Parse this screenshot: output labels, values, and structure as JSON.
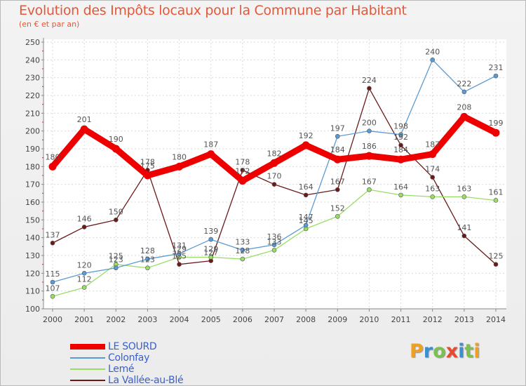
{
  "title": "Evolution des Impôts locaux pour la Commune par Habitant",
  "subtitle": "(en € et par an)",
  "brand": {
    "letters": [
      "P",
      "r",
      "o",
      "x",
      "i",
      "t",
      "i"
    ],
    "colors": [
      "#f0a020",
      "#3a8fd0",
      "#7cc050",
      "#e84a2f",
      "#3a8fd0",
      "#7cc050",
      "#f0a020"
    ]
  },
  "chart_data": {
    "type": "line",
    "title": "Evolution des Impôts locaux pour la Commune par Habitant",
    "subtitle": "(en € et par an)",
    "xlabel": "",
    "ylabel": "",
    "ylim": [
      100,
      250
    ],
    "yticks": [
      100,
      110,
      120,
      130,
      140,
      150,
      160,
      170,
      180,
      190,
      200,
      210,
      220,
      230,
      240,
      250
    ],
    "categories": [
      "2000",
      "2001",
      "2002",
      "2003",
      "2004",
      "2005",
      "2006",
      "2007",
      "2008",
      "2009",
      "2010",
      "2011",
      "2012",
      "2013",
      "2014"
    ],
    "legend_position": "bottom-left",
    "series": [
      {
        "name": "LE SOURD",
        "color": "#ee0000",
        "values": [
          180,
          201,
          190,
          175,
          180,
          187,
          172,
          182,
          192,
          184,
          186,
          184,
          187,
          208,
          199
        ]
      },
      {
        "name": "Colonfay",
        "color": "#5b9bd5",
        "values": [
          115,
          120,
          123,
          128,
          131,
          139,
          133,
          136,
          147,
          197,
          200,
          198,
          240,
          222,
          231
        ]
      },
      {
        "name": "Lemé",
        "color": "#99dd66",
        "values": [
          107,
          112,
          125,
          123,
          129,
          129,
          128,
          133,
          145,
          152,
          167,
          164,
          163,
          163,
          161
        ]
      },
      {
        "name": "La Vallée-au-Blé",
        "color": "#6b1a1a",
        "values": [
          137,
          146,
          150,
          178,
          125,
          127,
          178,
          170,
          164,
          167,
          224,
          192,
          174,
          141,
          125
        ]
      }
    ]
  }
}
